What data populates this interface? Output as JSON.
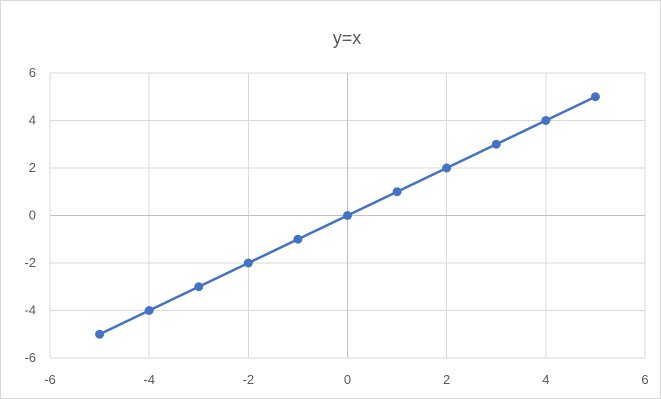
{
  "chart_data": {
    "type": "scatter",
    "title": "y=x",
    "xlabel": "",
    "ylabel": "",
    "xlim": [
      -6,
      6
    ],
    "ylim": [
      -6,
      6
    ],
    "xticks": [
      -6,
      -4,
      -2,
      0,
      2,
      4,
      6
    ],
    "yticks": [
      -6,
      -4,
      -2,
      0,
      2,
      4,
      6
    ],
    "grid": true,
    "legend": "none",
    "series": [
      {
        "color": "#4472c4",
        "x": [
          -5,
          -4,
          -3,
          -2,
          -1,
          0,
          1,
          2,
          3,
          4,
          5
        ],
        "y": [
          -5,
          -4,
          -3,
          -2,
          -1,
          0,
          1,
          2,
          3,
          4,
          5
        ],
        "marker": "circle",
        "line": "solid"
      }
    ]
  }
}
